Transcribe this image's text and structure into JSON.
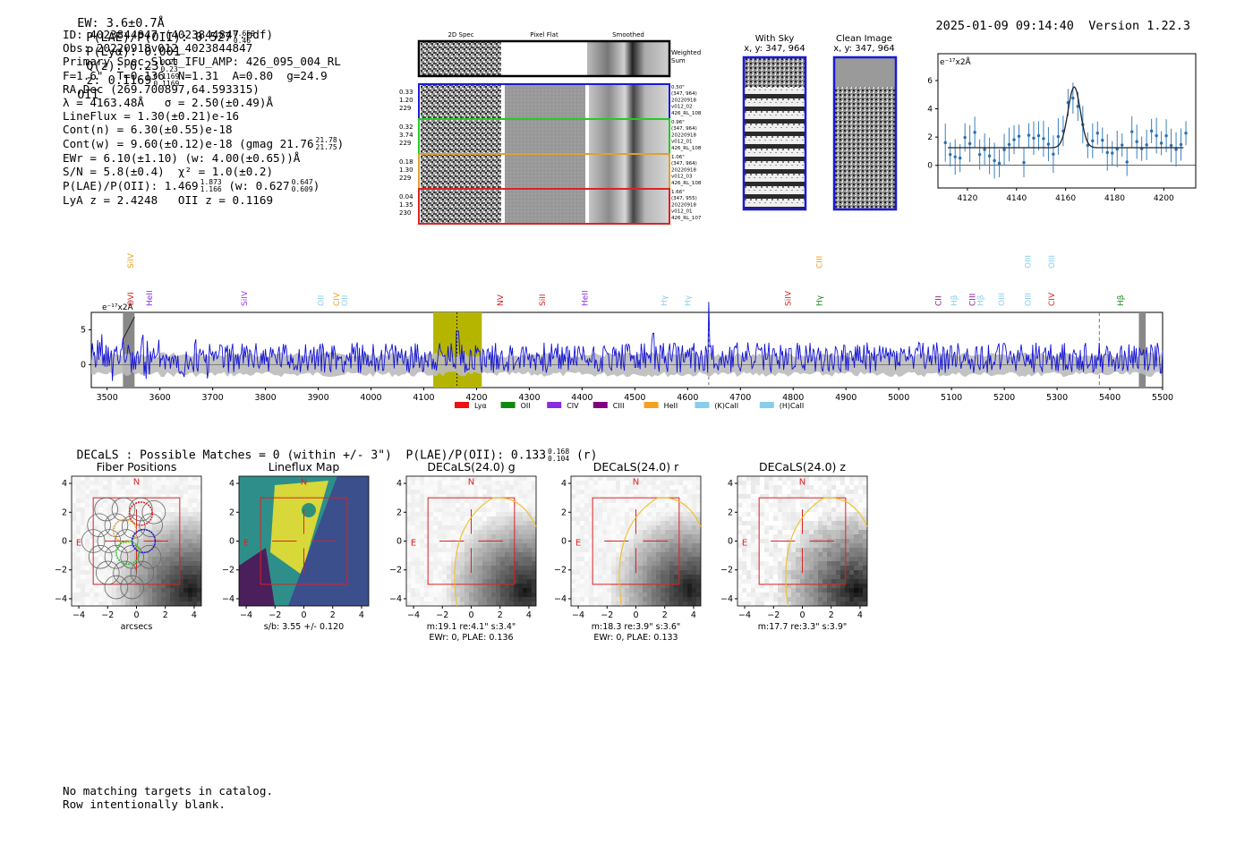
{
  "header": {
    "ew": "EW: 3.6±0.7Å",
    "plae": "P(LAE)/P(OII): 0.527",
    "plae_hi": "0.659",
    "plae_lo": "0.46",
    "plya": "P(Lyα): 0.001",
    "qz": "Q(z): 0.23",
    "qz_hi": "0.23",
    "qz_lo": "0.23",
    "z": "z: 0.1169",
    "z_hi": "0.1169",
    "z_lo": "0.1169",
    "z_line": "OII",
    "timestamp": "2025-01-09 09:14:40",
    "version": "Version 1.22.3"
  },
  "info": {
    "id": "ID: 4023844847 (4023844847.pdf)",
    "obs": "Obs: 20220918v012_4023844847",
    "primary": "Primary Spec_Slot_IFU_AMP: 426_095_004_RL",
    "fiber": "F=1.6\"  T=0.136  N=1.31  A=0.80  g=24.9",
    "radec": "RA,Dec (269.700897,64.593315)",
    "lambda": "λ = 4163.48Å   σ = 2.50(±0.49)Å",
    "lineflux": "LineFlux = 1.30(±0.21)e-16",
    "contn": "Cont(n) = 6.30(±0.55)e-18",
    "contw": "Cont(w) = 9.60(±0.12)e-18 (gmag 21.76",
    "contw_hi": "21.78",
    "contw_lo": "21.75",
    "contw_end": ")",
    "ewr": "EWr = 6.10(±1.10) (w: 4.00(±0.65))Å",
    "sn": "S/N = 5.8(±0.4)  χ² = 1.0(±0.2)",
    "plae": "P(LAE)/P(OII): 1.469",
    "plae_hi": "1.873",
    "plae_lo": "1.166",
    "plae_w": "(w: 0.627",
    "plae_w_hi": "0.647",
    "plae_w_lo": "0.609",
    "plae_w_end": ")",
    "lya": "LyA z = 2.4248   OII z = 0.1169"
  },
  "cutouts": {
    "headers": [
      "2D Spec",
      "Pixel Flat",
      "Smoothed"
    ],
    "weighted": "Weighted\nSum",
    "rows": [
      {
        "color": "#1a1ad6",
        "left": [
          "0.33",
          "1.20",
          "229"
        ],
        "right": [
          "0.50\"",
          "(347, 964)",
          "20220918",
          "v012_02",
          "426_RL_108"
        ]
      },
      {
        "color": "#22cc22",
        "left": [
          "0.32",
          "3.74",
          "229"
        ],
        "right": [
          "0.96\"",
          "(347, 964)",
          "20220918",
          "v012_01",
          "426_RL_108"
        ]
      },
      {
        "color": "#e0a030",
        "left": [
          "0.18",
          "1.30",
          "229"
        ],
        "right": [
          "1.06\"",
          "(347, 964)",
          "20220918",
          "v012_03",
          "426_RL_108"
        ]
      },
      {
        "color": "#dd2222",
        "left": [
          "0.04",
          "1.35",
          "230"
        ],
        "right": [
          "1.66\"",
          "(347, 955)",
          "20220918",
          "v012_01",
          "426_RL_107"
        ]
      }
    ]
  },
  "sky": {
    "with_sky": "With Sky",
    "with_sky_xy": "x, y: 347, 964",
    "clean": "Clean Image",
    "clean_xy": "x, y: 347, 964"
  },
  "zoom_chart": {
    "unit": "e⁻¹⁷x2Å",
    "x_ticks": [
      "4120",
      "4140",
      "4160",
      "4180",
      "4200"
    ],
    "y_ticks": [
      "0",
      "2",
      "4",
      "6"
    ]
  },
  "spectrum": {
    "unit": "e⁻¹⁷x2Å",
    "x_ticks": [
      "3500",
      "3600",
      "3700",
      "3800",
      "3900",
      "4000",
      "4100",
      "4200",
      "4300",
      "4400",
      "4500",
      "4600",
      "4700",
      "4800",
      "4900",
      "5000",
      "5100",
      "5200",
      "5300",
      "5400",
      "5500"
    ],
    "y_ticks": [
      "0",
      "5"
    ],
    "line_labels": [
      {
        "t": "SiIV",
        "w": 3545,
        "c": "#e8a020",
        "row": 0
      },
      {
        "t": "OVI",
        "w": 3545,
        "c": "#dd2222",
        "row": 1
      },
      {
        "t": "HeII",
        "w": 3580,
        "c": "#8a2be2",
        "row": 1
      },
      {
        "t": "SiIV",
        "w": 3760,
        "c": "#9a40e0",
        "row": 1
      },
      {
        "t": "OII",
        "w": 3905,
        "c": "#87ceeb",
        "row": 1
      },
      {
        "t": "CIV",
        "w": 3935,
        "c": "#e8a020",
        "row": 1
      },
      {
        "t": "OII",
        "w": 3950,
        "c": "#87ceeb",
        "row": 1
      },
      {
        "t": "NV",
        "w": 4245,
        "c": "#dd2222",
        "row": 1
      },
      {
        "t": "SiII",
        "w": 4325,
        "c": "#dd2222",
        "row": 1
      },
      {
        "t": "HeII",
        "w": 4405,
        "c": "#8a2be2",
        "row": 1
      },
      {
        "t": "Hγ",
        "w": 4555,
        "c": "#87ceeb",
        "row": 1
      },
      {
        "t": "Hγ",
        "w": 4600,
        "c": "#87ceeb",
        "row": 1
      },
      {
        "t": "SiIV",
        "w": 4790,
        "c": "#dd2222",
        "row": 1
      },
      {
        "t": "CIII",
        "w": 4850,
        "c": "#e8a020",
        "row": 0
      },
      {
        "t": "Hγ",
        "w": 4850,
        "c": "#1a8a1a",
        "row": 1
      },
      {
        "t": "CII",
        "w": 5075,
        "c": "#8a1a8a",
        "row": 1
      },
      {
        "t": "Hβ",
        "w": 5105,
        "c": "#87ceeb",
        "row": 1
      },
      {
        "t": "CIII",
        "w": 5140,
        "c": "#8a1a8a",
        "row": 1
      },
      {
        "t": "Hβ",
        "w": 5155,
        "c": "#87ceeb",
        "row": 1
      },
      {
        "t": "OIII",
        "w": 5195,
        "c": "#87ceeb",
        "row": 1
      },
      {
        "t": "OIII",
        "w": 5245,
        "c": "#87ceeb",
        "row": 0
      },
      {
        "t": "OIII",
        "w": 5245,
        "c": "#87ceeb",
        "row": 1
      },
      {
        "t": "OIII",
        "w": 5290,
        "c": "#87ceeb",
        "row": 0
      },
      {
        "t": "CIV",
        "w": 5290,
        "c": "#dd2222",
        "row": 1
      },
      {
        "t": "Hβ",
        "w": 5420,
        "c": "#1a8a1a",
        "row": 1
      }
    ],
    "legend": [
      {
        "label": "Lyα",
        "color": "#ee1111"
      },
      {
        "label": "OII",
        "color": "#118811"
      },
      {
        "label": "CIV",
        "color": "#8a2be2"
      },
      {
        "label": "CIII",
        "color": "#800080"
      },
      {
        "label": "HeII",
        "color": "#f5a020"
      },
      {
        "label": "(K)CaII",
        "color": "#87ceeb"
      },
      {
        "label": "(H)CaII",
        "color": "#87ceeb"
      }
    ]
  },
  "decals": {
    "summary": "DECaLS : Possible Matches = 0 (within +/- 3\")  P(LAE)/P(OII): 0.133",
    "summary_hi": "0.168",
    "summary_lo": "0.104",
    "summary_end": "(r)",
    "panels": [
      {
        "title": "Fiber Positions",
        "cap1": "arcsecs",
        "cap2": ""
      },
      {
        "title": "Lineflux Map",
        "cap1": "s/b: 3.55 +/- 0.120",
        "cap2": ""
      },
      {
        "title": "DECaLS(24.0) g",
        "cap1": "m:19.1  re:4.1\"  s:3.4\"",
        "cap2": "EWr: 0, PLAE: 0.136"
      },
      {
        "title": "DECaLS(24.0) r",
        "cap1": "m:18.3  re:3.9\"  s:3.6\"",
        "cap2": "EWr: 0, PLAE: 0.133"
      },
      {
        "title": "DECaLS(24.0) z",
        "cap1": "m:17.7  re:3.3\"  s:3.9\"",
        "cap2": ""
      }
    ],
    "ticks": [
      "−4",
      "−2",
      "0",
      "2",
      "4"
    ],
    "yticks": [
      "4",
      "2",
      "0",
      "−2",
      "−4"
    ],
    "north": "N",
    "east": "E"
  },
  "footer": {
    "line1": "No matching targets in catalog.",
    "line2": "Row intentionally blank."
  }
}
